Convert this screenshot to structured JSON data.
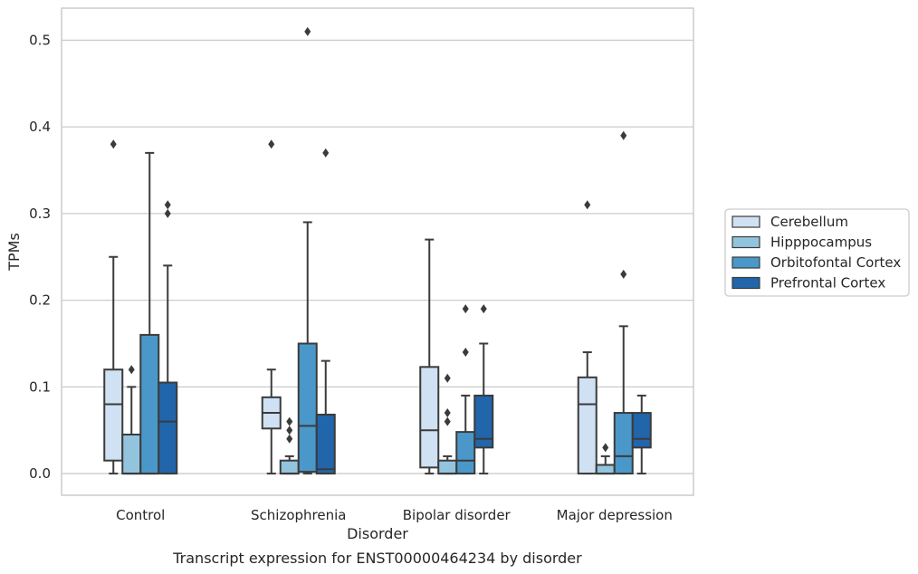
{
  "caption": "Transcript expression for ENST00000464234 by disorder",
  "chart_data": {
    "type": "box",
    "xlabel": "Disorder",
    "ylabel": "TPMs",
    "ylim": [
      -0.025,
      0.537
    ],
    "yticks": [
      "0.0",
      "0.1",
      "0.2",
      "0.3",
      "0.4",
      "0.5"
    ],
    "grid": "horizontal",
    "legend_position": "right",
    "categories": [
      "Control",
      "Schizophrenia",
      "Bipolar disorder",
      "Major depression"
    ],
    "series": [
      {
        "name": "Cerebellum",
        "color": "#cfe1f2",
        "boxes": [
          {
            "whisker_low": 0.0,
            "q1": 0.015,
            "median": 0.08,
            "q3": 0.12,
            "whisker_high": 0.25,
            "outliers": [
              0.38
            ]
          },
          {
            "whisker_low": 0.0,
            "q1": 0.052,
            "median": 0.07,
            "q3": 0.088,
            "whisker_high": 0.12,
            "outliers": [
              0.38
            ]
          },
          {
            "whisker_low": 0.0,
            "q1": 0.007,
            "median": 0.05,
            "q3": 0.123,
            "whisker_high": 0.27,
            "outliers": []
          },
          {
            "whisker_low": 0.0,
            "q1": 0.0,
            "median": 0.08,
            "q3": 0.111,
            "whisker_high": 0.14,
            "outliers": [
              0.31
            ]
          }
        ]
      },
      {
        "name": "Hipppocampus",
        "color": "#93c4de",
        "boxes": [
          {
            "whisker_low": 0.0,
            "q1": 0.0,
            "median": 0.0,
            "q3": 0.045,
            "whisker_high": 0.1,
            "outliers": [
              0.12
            ]
          },
          {
            "whisker_low": 0.0,
            "q1": 0.0,
            "median": 0.0,
            "q3": 0.015,
            "whisker_high": 0.02,
            "outliers": [
              0.04,
              0.05,
              0.06
            ]
          },
          {
            "whisker_low": 0.0,
            "q1": 0.0,
            "median": 0.0,
            "q3": 0.015,
            "whisker_high": 0.02,
            "outliers": [
              0.06,
              0.07,
              0.11
            ]
          },
          {
            "whisker_low": 0.0,
            "q1": 0.0,
            "median": 0.0,
            "q3": 0.01,
            "whisker_high": 0.02,
            "outliers": [
              0.03
            ]
          }
        ]
      },
      {
        "name": "Orbitofontal Cortex",
        "color": "#4a98c9",
        "boxes": [
          {
            "whisker_low": 0.0,
            "q1": 0.0,
            "median": 0.0,
            "q3": 0.16,
            "whisker_high": 0.37,
            "outliers": []
          },
          {
            "whisker_low": 0.0,
            "q1": 0.002,
            "median": 0.055,
            "q3": 0.15,
            "whisker_high": 0.29,
            "outliers": [
              0.51
            ]
          },
          {
            "whisker_low": 0.0,
            "q1": 0.0,
            "median": 0.015,
            "q3": 0.048,
            "whisker_high": 0.09,
            "outliers": [
              0.14,
              0.19
            ]
          },
          {
            "whisker_low": 0.0,
            "q1": 0.0,
            "median": 0.02,
            "q3": 0.07,
            "whisker_high": 0.17,
            "outliers": [
              0.23,
              0.39
            ]
          }
        ]
      },
      {
        "name": "Prefrontal Cortex",
        "color": "#2165ab",
        "boxes": [
          {
            "whisker_low": 0.0,
            "q1": 0.0,
            "median": 0.06,
            "q3": 0.105,
            "whisker_high": 0.24,
            "outliers": [
              0.3,
              0.31
            ]
          },
          {
            "whisker_low": 0.0,
            "q1": 0.0,
            "median": 0.005,
            "q3": 0.068,
            "whisker_high": 0.13,
            "outliers": [
              0.37
            ]
          },
          {
            "whisker_low": 0.0,
            "q1": 0.03,
            "median": 0.04,
            "q3": 0.09,
            "whisker_high": 0.15,
            "outliers": [
              0.19
            ]
          },
          {
            "whisker_low": 0.0,
            "q1": 0.03,
            "median": 0.04,
            "q3": 0.07,
            "whisker_high": 0.09,
            "outliers": []
          }
        ]
      }
    ]
  }
}
